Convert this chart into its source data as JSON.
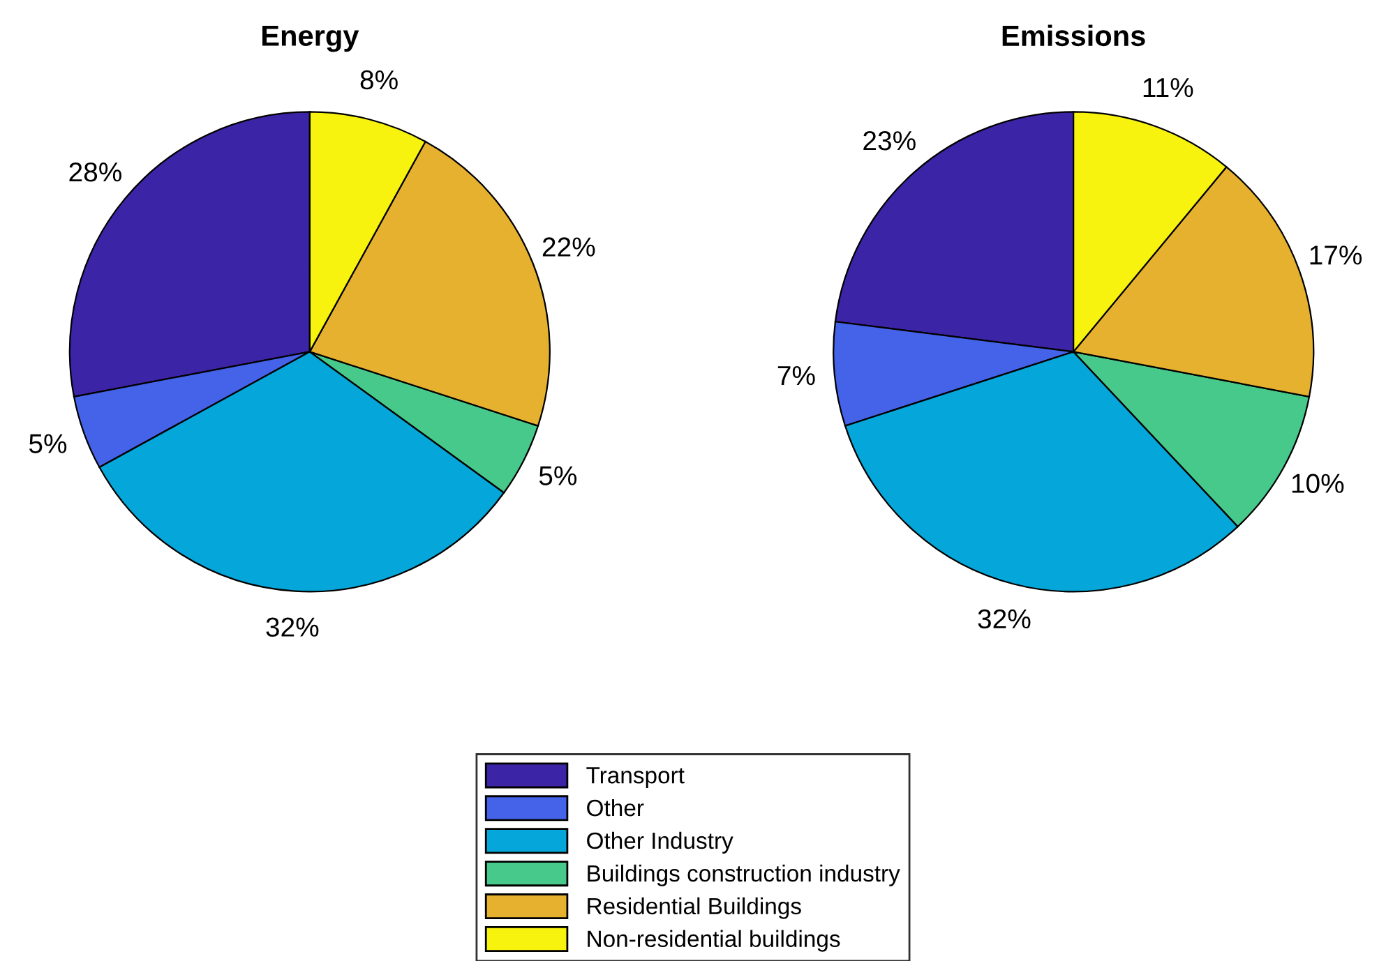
{
  "chart_data": [
    {
      "type": "pie",
      "title": "Energy",
      "categories": [
        "Transport",
        "Other",
        "Other Industry",
        "Buildings construction industry",
        "Residential Buildings",
        "Non-residential buildings"
      ],
      "values": [
        28,
        5,
        32,
        5,
        22,
        8
      ],
      "value_labels": [
        "28%",
        "5%",
        "32%",
        "5%",
        "22%",
        "8%"
      ],
      "colors": [
        "#3c24a6",
        "#4463e8",
        "#05a6d9",
        "#46c98a",
        "#e6b12f",
        "#f8f20f"
      ],
      "legend": "bottom"
    },
    {
      "type": "pie",
      "title": "Emissions",
      "categories": [
        null,
        null,
        null,
        null,
        null,
        null
      ],
      "values": [
        23,
        7,
        32,
        10,
        17,
        11
      ],
      "value_labels": [
        "23%",
        "7%",
        "32%",
        "10%",
        "17%",
        "11%"
      ],
      "colors": [
        "#3c24a6",
        "#4463e8",
        "#05a6d9",
        "#46c98a",
        "#e6b12f",
        "#f8f20f"
      ]
    }
  ]
}
